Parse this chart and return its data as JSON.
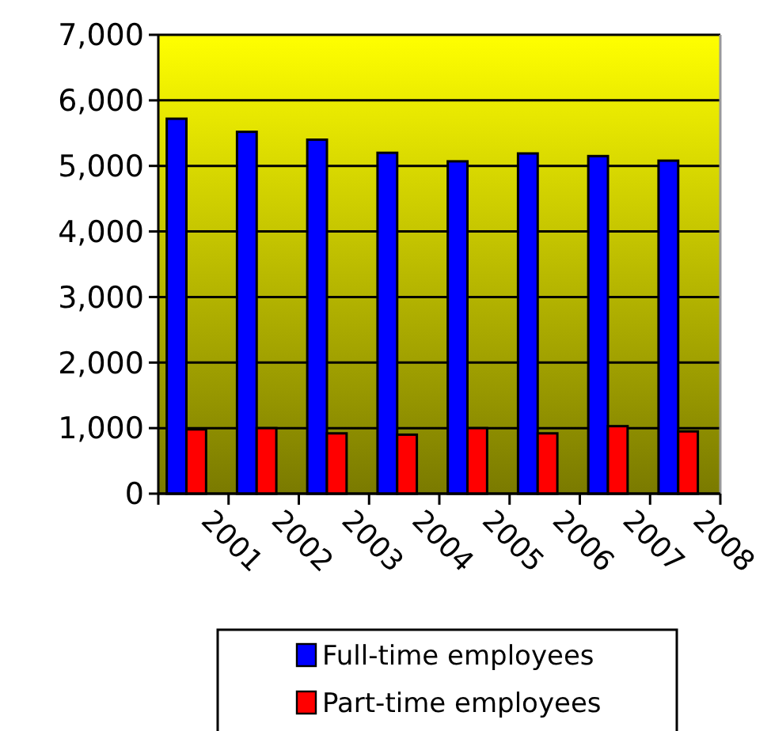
{
  "chart_data": {
    "type": "bar",
    "categories": [
      "2001",
      "2002",
      "2003",
      "2004",
      "2005",
      "2006",
      "2007",
      "2008"
    ],
    "series": [
      {
        "name": "Full-time employees",
        "color": "#0000ff",
        "values": [
          5720,
          5520,
          5400,
          5200,
          5070,
          5190,
          5150,
          5080
        ]
      },
      {
        "name": "Part-time employees",
        "color": "#ff0000",
        "values": [
          980,
          1000,
          920,
          900,
          1000,
          920,
          1030,
          950
        ]
      }
    ],
    "ylim": [
      0,
      7000
    ],
    "yticks": [
      {
        "value": 0,
        "label": "0"
      },
      {
        "value": 1000,
        "label": "1,000"
      },
      {
        "value": 2000,
        "label": "2,000"
      },
      {
        "value": 3000,
        "label": "3,000"
      },
      {
        "value": 4000,
        "label": "4,000"
      },
      {
        "value": 5000,
        "label": "5,000"
      },
      {
        "value": 6000,
        "label": "6,000"
      },
      {
        "value": 7000,
        "label": "7,000"
      }
    ],
    "grid": "y",
    "legend": "bottom"
  }
}
